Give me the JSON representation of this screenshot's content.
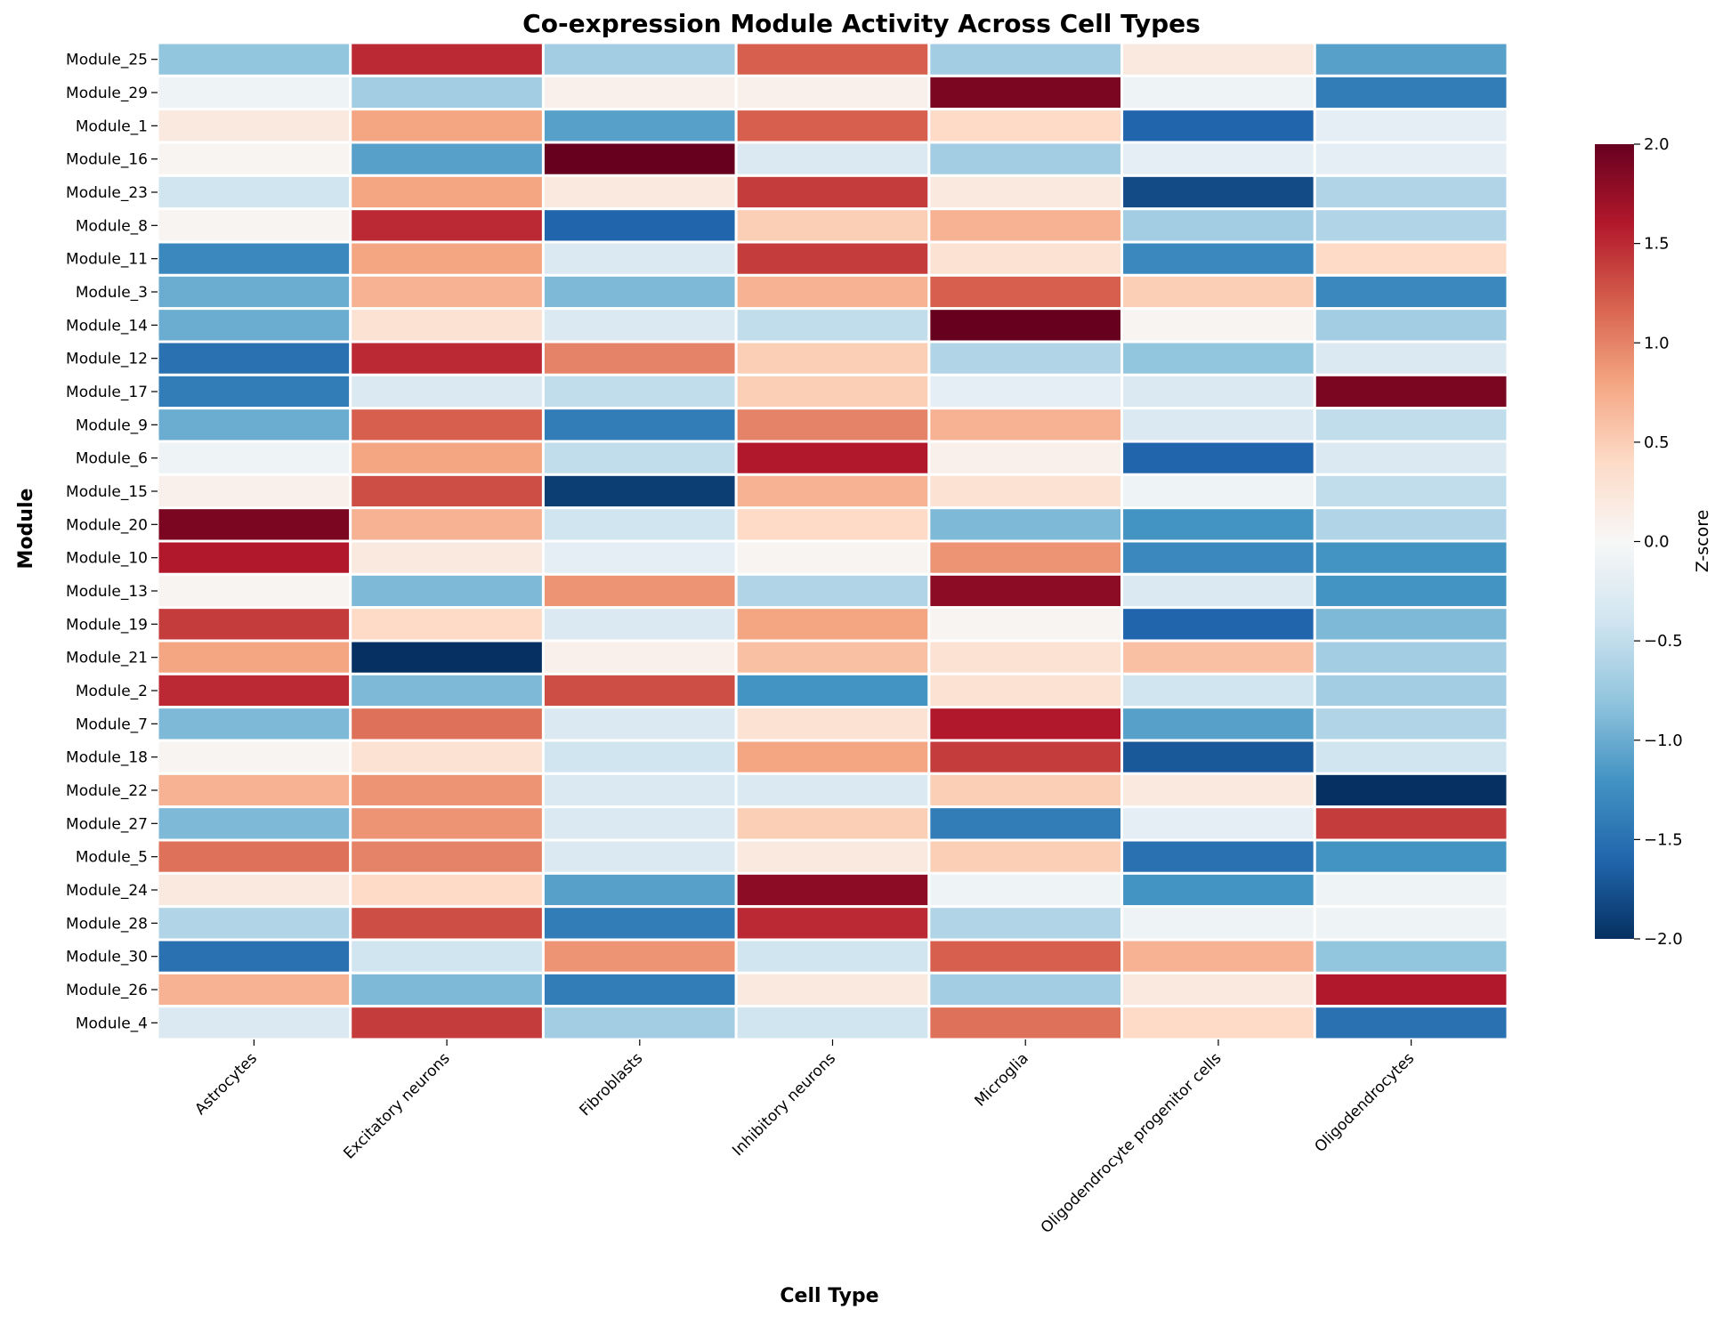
{
  "chart_data": {
    "type": "heatmap",
    "title": "Co-expression Module Activity Across Cell Types",
    "xlabel": "Cell Type",
    "ylabel": "Module",
    "colorbar_label": "Z-score",
    "vmin": -2.0,
    "vmax": 2.0,
    "colorbar_ticks": [
      "2.0",
      "1.5",
      "1.0",
      "0.5",
      "0.0",
      "−0.5",
      "−1.0",
      "−1.5",
      "−2.0"
    ],
    "colorbar_tick_values": [
      2.0,
      1.5,
      1.0,
      0.5,
      0.0,
      -0.5,
      -1.0,
      -1.5,
      -2.0
    ],
    "colormap": "RdBu_r",
    "columns": [
      "Astrocytes",
      "Excitatory neurons",
      "Fibroblasts",
      "Inhibitory neurons",
      "Microglia",
      "Oligodendrocyte progenitor cells",
      "Oligodendrocytes"
    ],
    "rows": [
      "Module_25",
      "Module_29",
      "Module_1",
      "Module_16",
      "Module_23",
      "Module_8",
      "Module_11",
      "Module_3",
      "Module_14",
      "Module_12",
      "Module_17",
      "Module_9",
      "Module_6",
      "Module_15",
      "Module_20",
      "Module_10",
      "Module_13",
      "Module_19",
      "Module_21",
      "Module_2",
      "Module_7",
      "Module_18",
      "Module_22",
      "Module_27",
      "Module_5",
      "Module_24",
      "Module_28",
      "Module_30",
      "Module_26",
      "Module_4"
    ],
    "values": [
      [
        -0.8,
        1.5,
        -0.7,
        1.2,
        -0.7,
        0.2,
        -1.1
      ],
      [
        -0.1,
        -0.7,
        0.1,
        0.1,
        1.9,
        -0.1,
        -1.4
      ],
      [
        0.2,
        0.8,
        -1.1,
        1.2,
        0.4,
        -1.6,
        -0.2
      ],
      [
        0.05,
        -1.1,
        2.0,
        -0.3,
        -0.7,
        -0.2,
        -0.2
      ],
      [
        -0.4,
        0.8,
        0.2,
        1.4,
        0.2,
        -1.8,
        -0.6
      ],
      [
        0.05,
        1.5,
        -1.6,
        0.5,
        0.7,
        -0.7,
        -0.6
      ],
      [
        -1.3,
        0.8,
        -0.3,
        1.4,
        0.3,
        -1.3,
        0.4
      ],
      [
        -1.0,
        0.7,
        -0.9,
        0.7,
        1.2,
        0.5,
        -1.3
      ],
      [
        -1.0,
        0.3,
        -0.3,
        -0.5,
        2.0,
        0.05,
        -0.7
      ],
      [
        -1.5,
        1.5,
        1.0,
        0.5,
        -0.6,
        -0.8,
        -0.3
      ],
      [
        -1.4,
        -0.3,
        -0.5,
        0.5,
        -0.2,
        -0.3,
        1.9
      ],
      [
        -1.0,
        1.2,
        -1.4,
        1.0,
        0.7,
        -0.3,
        -0.5
      ],
      [
        -0.1,
        0.8,
        -0.5,
        1.6,
        0.1,
        -1.6,
        -0.3
      ],
      [
        0.1,
        1.3,
        -1.9,
        0.7,
        0.3,
        -0.1,
        -0.5
      ],
      [
        1.9,
        0.7,
        -0.4,
        0.4,
        -0.9,
        -1.2,
        -0.6
      ],
      [
        1.6,
        0.2,
        -0.2,
        0.05,
        0.9,
        -1.3,
        -1.2
      ],
      [
        0.05,
        -0.9,
        0.9,
        -0.6,
        1.8,
        -0.3,
        -1.2
      ],
      [
        1.4,
        0.4,
        -0.3,
        0.8,
        0.05,
        -1.6,
        -0.9
      ],
      [
        0.8,
        -2.0,
        0.1,
        0.6,
        0.3,
        0.6,
        -0.7
      ],
      [
        1.5,
        -0.9,
        1.3,
        -1.2,
        0.3,
        -0.4,
        -0.7
      ],
      [
        -0.9,
        1.1,
        -0.3,
        0.3,
        1.6,
        -1.1,
        -0.6
      ],
      [
        0.05,
        0.3,
        -0.4,
        0.8,
        1.4,
        -1.7,
        -0.4
      ],
      [
        0.7,
        0.9,
        -0.3,
        -0.3,
        0.5,
        0.2,
        -2.0
      ],
      [
        -0.9,
        0.9,
        -0.3,
        0.5,
        -1.4,
        -0.2,
        1.4
      ],
      [
        1.1,
        1.0,
        -0.3,
        0.2,
        0.5,
        -1.5,
        -1.2
      ],
      [
        0.2,
        0.4,
        -1.1,
        1.8,
        -0.1,
        -1.2,
        -0.1
      ],
      [
        -0.6,
        1.3,
        -1.4,
        1.5,
        -0.6,
        -0.1,
        -0.1
      ],
      [
        -1.5,
        -0.4,
        0.9,
        -0.4,
        1.2,
        0.7,
        -0.8
      ],
      [
        0.7,
        -0.9,
        -1.4,
        0.2,
        -0.7,
        0.2,
        1.6
      ],
      [
        -0.3,
        1.4,
        -0.7,
        -0.4,
        1.1,
        0.4,
        -1.5
      ]
    ]
  }
}
